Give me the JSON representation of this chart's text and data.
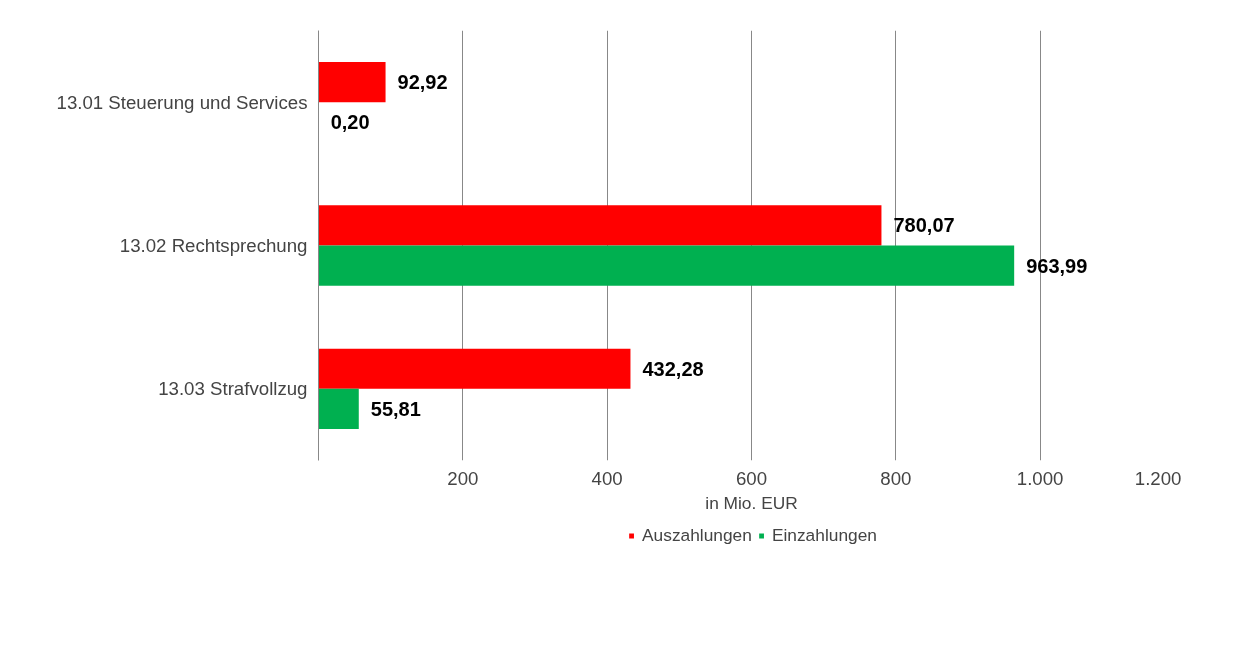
{
  "chart_data": {
    "type": "bar",
    "orientation": "horizontal",
    "categories": [
      "13.01 Steuerung und Services",
      "13.02 Rechtsprechung",
      "13.03 Strafvollzug"
    ],
    "series": [
      {
        "name": "Auszahlungen",
        "color": "#ff0000",
        "values": [
          92.92,
          780.07,
          432.28
        ],
        "value_labels": [
          "92,92",
          "780,07",
          "432,28"
        ]
      },
      {
        "name": "Einzahlungen",
        "color": "#00b050",
        "values": [
          0.2,
          963.99,
          55.81
        ],
        "value_labels": [
          "0,20",
          "963,99",
          "55,81"
        ]
      }
    ],
    "xlabel": "in Mio. EUR",
    "xlim": [
      0,
      1200
    ],
    "xticks": [
      {
        "value": 0,
        "label": null
      },
      200,
      400,
      600,
      800,
      {
        "value": 1000,
        "label": "1.000"
      },
      {
        "value": 1200,
        "label": "1.200"
      }
    ],
    "grid": "x",
    "legend": "bottom"
  }
}
